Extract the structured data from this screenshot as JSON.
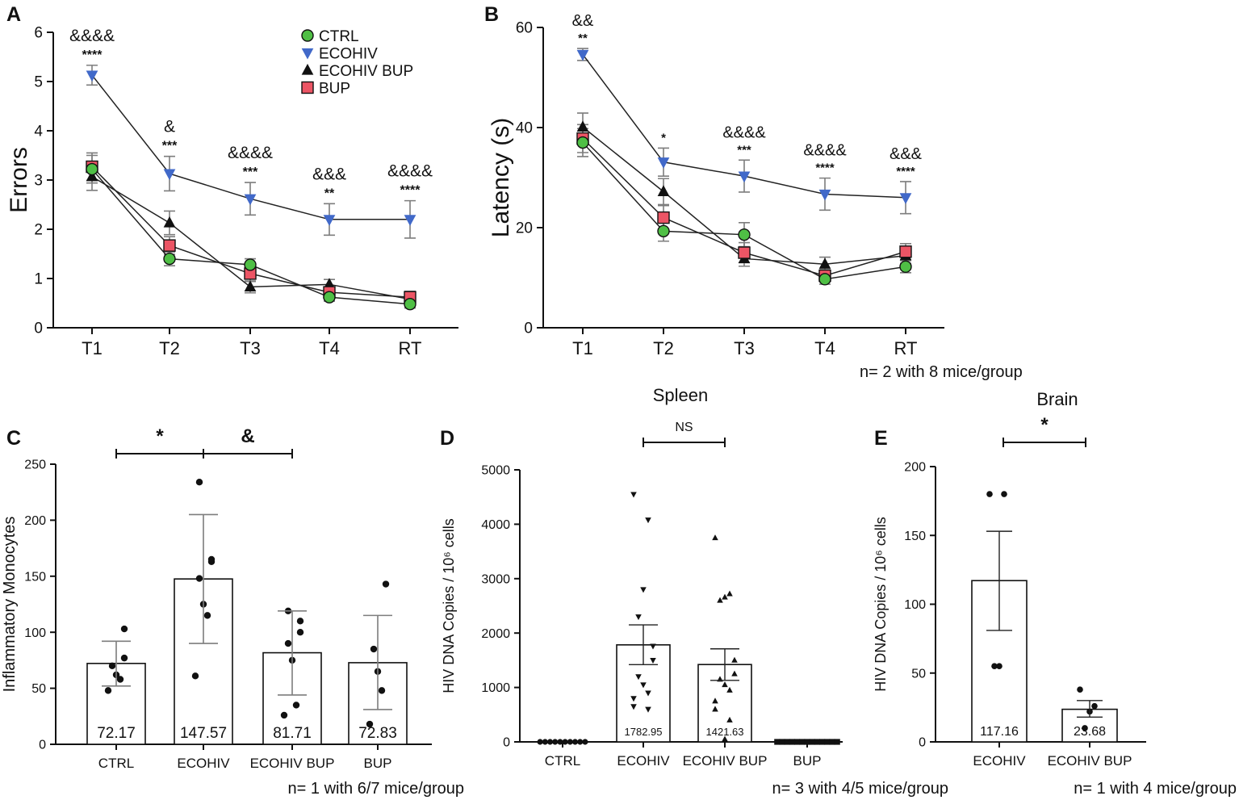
{
  "colors": {
    "ctrl": "#4fbf45",
    "ecohiv": "#4169c9",
    "ecohiv_bup": "#111111",
    "bup": "#ec5565"
  },
  "panel_letters": {
    "a": "A",
    "b": "B",
    "c": "C",
    "d": "D",
    "e": "E"
  },
  "notes": {
    "b": "n= 2 with 8 mice/group",
    "c": "n= 1 with 6/7 mice/group",
    "d": "n= 3 with 4/5 mice/group",
    "e": "n= 1 with 4 mice/group"
  },
  "titles": {
    "d": "Spleen",
    "e": "Brain"
  },
  "chart_data": [
    {
      "id": "A",
      "type": "line",
      "ylabel": "Errors",
      "ylim": [
        0,
        6
      ],
      "yticks": [
        0,
        1,
        2,
        3,
        4,
        5,
        6
      ],
      "categories": [
        "T1",
        "T2",
        "T3",
        "T4",
        "RT"
      ],
      "legend_placement": "top-right",
      "series": [
        {
          "name": "CTRL",
          "values": [
            3.22,
            1.4,
            1.28,
            0.62,
            0.48
          ],
          "sem": [
            0.28,
            0.14,
            0.12,
            0.08,
            0.08
          ]
        },
        {
          "name": "ECOHIV",
          "values": [
            5.13,
            3.13,
            2.62,
            2.2,
            2.2
          ],
          "sem": [
            0.2,
            0.35,
            0.33,
            0.32,
            0.38
          ]
        },
        {
          "name": "ECOHIV BUP",
          "values": [
            3.07,
            2.13,
            0.83,
            0.88,
            0.58
          ],
          "sem": [
            0.28,
            0.24,
            0.12,
            0.1,
            0.1
          ]
        },
        {
          "name": "BUP",
          "values": [
            3.27,
            1.67,
            1.1,
            0.72,
            0.62
          ],
          "sem": [
            0.28,
            0.18,
            0.16,
            0.1,
            0.12
          ]
        }
      ],
      "annotations": [
        {
          "x": "T1",
          "amp": "&&&&",
          "star": "****"
        },
        {
          "x": "T2",
          "amp": "&",
          "star": "***"
        },
        {
          "x": "T3",
          "amp": "&&&&",
          "star": "***"
        },
        {
          "x": "T4",
          "amp": "&&&",
          "star": "**"
        },
        {
          "x": "RT",
          "amp": "&&&&",
          "star": "****"
        }
      ]
    },
    {
      "id": "B",
      "type": "line",
      "ylabel": "Latency (s)",
      "ylim": [
        0,
        60
      ],
      "yticks": [
        0,
        20,
        40,
        60
      ],
      "categories": [
        "T1",
        "T2",
        "T3",
        "T4",
        "RT"
      ],
      "series": [
        {
          "name": "CTRL",
          "values": [
            37.0,
            19.3,
            18.6,
            9.7,
            12.2
          ],
          "sem": [
            2.8,
            2.0,
            2.4,
            1.0,
            1.2
          ]
        },
        {
          "name": "ECOHIV",
          "values": [
            54.6,
            33.1,
            30.3,
            26.7,
            26.0
          ],
          "sem": [
            1.2,
            2.8,
            3.2,
            3.2,
            3.2
          ]
        },
        {
          "name": "ECOHIV BUP",
          "values": [
            40.1,
            27.2,
            13.8,
            12.7,
            14.4
          ],
          "sem": [
            2.8,
            2.6,
            1.5,
            1.4,
            1.5
          ]
        },
        {
          "name": "BUP",
          "values": [
            37.8,
            22.0,
            15.0,
            10.4,
            15.2
          ],
          "sem": [
            2.8,
            2.4,
            2.0,
            1.2,
            1.6
          ]
        }
      ],
      "annotations": [
        {
          "x": "T1",
          "amp": "&&",
          "star": "**"
        },
        {
          "x": "T2",
          "amp": "",
          "star": "*"
        },
        {
          "x": "T3",
          "amp": "&&&&",
          "star": "***"
        },
        {
          "x": "T4",
          "amp": "&&&&",
          "star": "****"
        },
        {
          "x": "RT",
          "amp": "&&&",
          "star": "****"
        }
      ]
    },
    {
      "id": "C",
      "type": "bar",
      "ylabel": "Inflammatory Monocytes",
      "ylim": [
        0,
        250
      ],
      "yticks": [
        0,
        50,
        100,
        150,
        200,
        250
      ],
      "categories": [
        "CTRL",
        "ECOHIV",
        "ECOHIV BUP",
        "BUP"
      ],
      "values": [
        72.17,
        147.57,
        81.71,
        72.83
      ],
      "value_labels": [
        "72.17",
        "147.57",
        "81.71",
        "72.83"
      ],
      "error": [
        [
          52,
          92
        ],
        [
          90,
          205
        ],
        [
          44,
          119
        ],
        [
          31,
          115
        ]
      ],
      "points": [
        [
          48,
          58,
          62,
          70,
          77,
          103
        ],
        [
          61,
          115,
          125,
          148,
          163,
          165,
          234
        ],
        [
          26,
          35,
          75,
          90,
          100,
          110,
          119
        ],
        [
          18,
          48,
          65,
          85,
          143
        ]
      ],
      "comparisons": [
        {
          "from": "CTRL",
          "to": "ECOHIV",
          "label": "*"
        },
        {
          "from": "ECOHIV",
          "to": "ECOHIV BUP",
          "label": "&"
        }
      ]
    },
    {
      "id": "D",
      "type": "bar",
      "title": "Spleen",
      "ylabel": "HIV DNA Copies / 10⁶ cells",
      "ylim": [
        0,
        5000
      ],
      "yticks": [
        0,
        1000,
        2000,
        3000,
        4000,
        5000
      ],
      "categories": [
        "CTRL",
        "ECOHIV",
        "ECOHIV BUP",
        "BUP"
      ],
      "values": [
        0,
        1782.95,
        1421.63,
        0
      ],
      "value_labels": [
        "",
        "1782.95",
        "1421.63",
        ""
      ],
      "error": [
        [
          0,
          0
        ],
        [
          1420,
          2150
        ],
        [
          1130,
          1710
        ],
        [
          0,
          0
        ]
      ],
      "points": [
        [
          0,
          0,
          0,
          0,
          0,
          0,
          0,
          0,
          0,
          0
        ],
        [
          4550,
          4080,
          2800,
          2300,
          1760,
          1500,
          1200,
          1050,
          900,
          800,
          650,
          600
        ],
        [
          3750,
          2720,
          2660,
          2600,
          1500,
          1250,
          1150,
          1050,
          950,
          750,
          600,
          400,
          50
        ],
        [
          0,
          0,
          0,
          0,
          0,
          0,
          0,
          0,
          0,
          0,
          0,
          0,
          0
        ]
      ],
      "point_markers": [
        "circle",
        "triangle-down",
        "triangle-up",
        "square"
      ],
      "comparisons": [
        {
          "from": "ECOHIV",
          "to": "ECOHIV BUP",
          "label": "NS"
        }
      ]
    },
    {
      "id": "E",
      "type": "bar",
      "title": "Brain",
      "ylabel": "HIV DNA Copies / 10⁶ cells",
      "ylim": [
        0,
        200
      ],
      "yticks": [
        0,
        50,
        100,
        150,
        200
      ],
      "categories": [
        "ECOHIV",
        "ECOHIV BUP"
      ],
      "values": [
        117.16,
        23.68
      ],
      "value_labels": [
        "117.16",
        "23.68"
      ],
      "error": [
        [
          81,
          153
        ],
        [
          18,
          30
        ]
      ],
      "points": [
        [
          180,
          180,
          55,
          55
        ],
        [
          38,
          26,
          22,
          10
        ]
      ],
      "comparisons": [
        {
          "from": "ECOHIV",
          "to": "ECOHIV BUP",
          "label": "*"
        }
      ]
    }
  ]
}
